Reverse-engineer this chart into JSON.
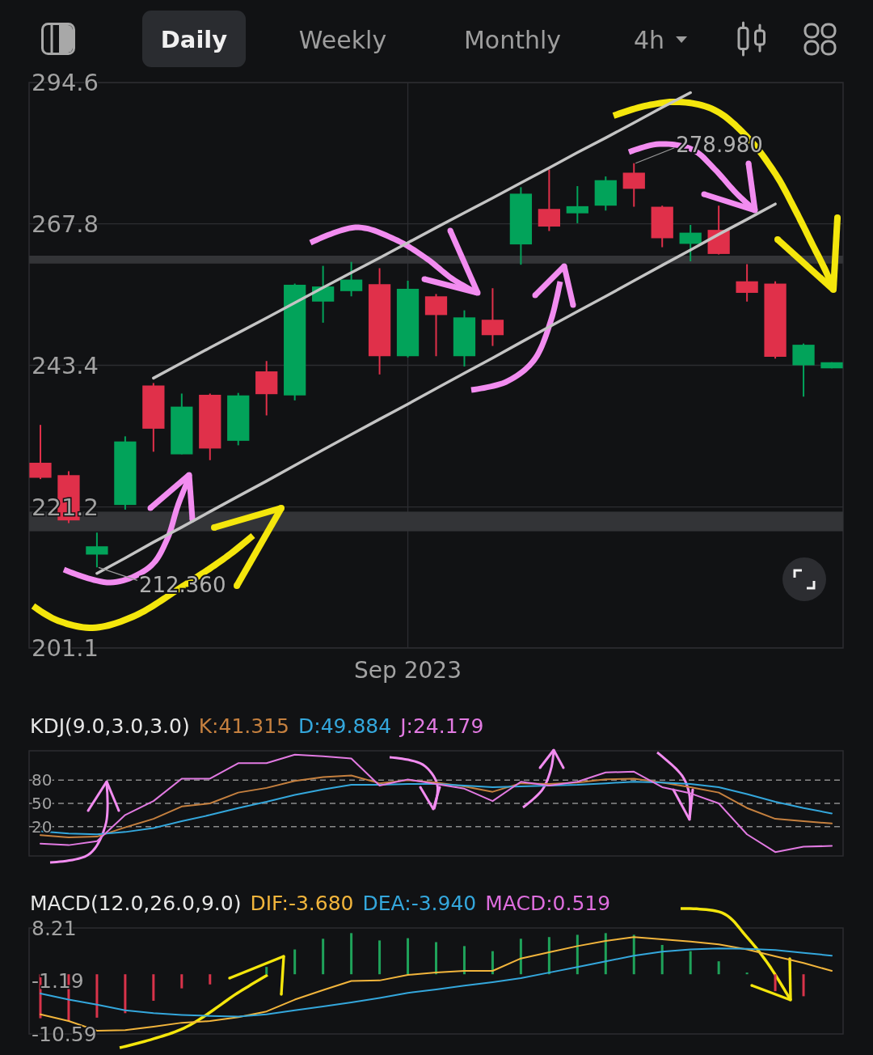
{
  "chart_data": [
    {
      "type": "other",
      "annotations": [
        "Daily",
        "Weekly",
        "Monthly",
        "4h"
      ]
    },
    {
      "type": "candlestick",
      "categories": [
        null,
        null,
        null,
        null,
        null,
        null,
        null,
        null,
        null,
        null,
        null,
        null,
        null,
        "Sep 2023",
        null,
        null,
        null,
        null,
        null,
        null,
        null,
        null,
        null,
        null,
        null,
        null,
        null,
        null,
        null
      ],
      "ohlc": [
        [
          227.9,
          233.8,
          225.4,
          225.6
        ],
        [
          226.0,
          226.6,
          218.8,
          219.2
        ],
        [
          214.2,
          217.4,
          212.36,
          215.4
        ],
        [
          221.5,
          232.0,
          220.8,
          231.2
        ],
        [
          240.1,
          240.5,
          229.6,
          233.2
        ],
        [
          229.2,
          238.8,
          229.2,
          236.7
        ],
        [
          238.6,
          238.8,
          228.3,
          230.1
        ],
        [
          231.3,
          238.9,
          230.6,
          238.5
        ],
        [
          242.4,
          244.1,
          235.3,
          238.7
        ],
        [
          238.5,
          257.2,
          237.7,
          257.0
        ],
        [
          254.1,
          260.3,
          250.5,
          256.7
        ],
        [
          255.9,
          261.0,
          255.0,
          257.9
        ],
        [
          257.1,
          259.9,
          241.9,
          244.9
        ],
        [
          244.9,
          257.7,
          244.7,
          256.3
        ],
        [
          255.0,
          255.4,
          244.9,
          251.8
        ],
        [
          244.9,
          252.6,
          243.2,
          251.4
        ],
        [
          251.0,
          256.4,
          246.6,
          248.4
        ],
        [
          264.1,
          274.5,
          260.5,
          273.3
        ],
        [
          270.5,
          277.8,
          266.5,
          267.3
        ],
        [
          269.7,
          274.7,
          267.9,
          271.0
        ],
        [
          271.1,
          276.5,
          270.2,
          275.8
        ],
        [
          277.2,
          278.98,
          270.9,
          274.2
        ],
        [
          270.9,
          271.1,
          263.6,
          265.2
        ],
        [
          264.2,
          267.6,
          261.1,
          266.2
        ],
        [
          266.7,
          271.1,
          262.3,
          262.4
        ],
        [
          257.6,
          260.6,
          254.1,
          255.6
        ],
        [
          257.2,
          257.6,
          244.5,
          244.8
        ],
        [
          243.4,
          247.0,
          238.3,
          246.8
        ],
        [
          242.9,
          243.9,
          242.9,
          243.9
        ]
      ],
      "colors": [
        "#e0304a",
        "#e0304a",
        "#02a35a",
        "#02a35a",
        "#e0304a",
        "#02a35a",
        "#e0304a",
        "#02a35a",
        "#e0304a",
        "#02a35a",
        "#02a35a",
        "#02a35a",
        "#e0304a",
        "#02a35a",
        "#e0304a",
        "#02a35a",
        "#e0304a",
        "#02a35a",
        "#e0304a",
        "#02a35a",
        "#02a35a",
        "#e0304a",
        "#e0304a",
        "#02a35a",
        "#e0304a",
        "#e0304a",
        "#e0304a",
        "#02a35a",
        "#02a35a"
      ],
      "series": [
        {
          "type": "line",
          "color": "#c4c4c4",
          "values": [
            null,
            null,
            null,
            null,
            241.3,
            243.8,
            246.3,
            248.8,
            251.3,
            253.9,
            256.5,
            259.1,
            261.7,
            264.4,
            267.1,
            269.8,
            272.5,
            275.3,
            278.1,
            281.0,
            283.8,
            286.7,
            289.7,
            292.6,
            null,
            null,
            null,
            null,
            null
          ]
        },
        {
          "type": "line",
          "color": "#c4c4c4",
          "values": [
            null,
            null,
            211.5,
            213.7,
            216.0,
            218.2,
            220.5,
            222.8,
            225.1,
            227.5,
            229.9,
            232.3,
            234.7,
            237.1,
            239.6,
            242.1,
            244.6,
            247.2,
            249.8,
            252.4,
            255.0,
            257.7,
            260.4,
            263.1,
            265.9,
            268.6,
            271.4,
            null,
            null
          ]
        }
      ],
      "ylim": [
        201.1,
        294.6
      ],
      "yticks": [
        201.1,
        221.2,
        243.4,
        267.8,
        294.6
      ],
      "log": true,
      "grid": true,
      "bands": [
        {
          "axis": "y",
          "from": 217.6,
          "to": 220.5,
          "color": "#333437"
        },
        {
          "axis": "y",
          "from": 260.7,
          "to": 262.1,
          "color": "#333437"
        }
      ],
      "annotations": [
        "278.980",
        "212.360"
      ]
    },
    {
      "type": "line",
      "title": "KDJ(9.0,3.0,3.0)",
      "categories": [
        null,
        null,
        null,
        null,
        null,
        null,
        null,
        null,
        null,
        null,
        null,
        null,
        null,
        null,
        null,
        null,
        null,
        null,
        null,
        null,
        null,
        null,
        null,
        null,
        null,
        null,
        null,
        null,
        null
      ],
      "series": [
        {
          "name": "K:41.315",
          "color": "#c5803f",
          "values": [
            9,
            6,
            7,
            19,
            30,
            46,
            50,
            64,
            70,
            79,
            84,
            86,
            76,
            80,
            77,
            72,
            65,
            76,
            75,
            77,
            81,
            82,
            77,
            71,
            64,
            44,
            30,
            27,
            24
          ]
        },
        {
          "name": "D:49.884",
          "color": "#34a7dc",
          "values": [
            14,
            11,
            10,
            13,
            18,
            27,
            35,
            44,
            52,
            61,
            68,
            74,
            74,
            75,
            75,
            73,
            71,
            72,
            73,
            74,
            76,
            78,
            77,
            75,
            71,
            62,
            52,
            44,
            37
          ]
        },
        {
          "name": "J:24.179",
          "color": "#e27ae2",
          "values": [
            -2,
            -4,
            1,
            35,
            53,
            82,
            82,
            102,
            102,
            113,
            111,
            108,
            73,
            81,
            75,
            69,
            53,
            78,
            73,
            78,
            90,
            91,
            71,
            63,
            50,
            10,
            -13,
            -6,
            -5
          ]
        }
      ],
      "ylim": [
        -18,
        118
      ],
      "yticks": [
        20,
        50,
        80
      ],
      "grid": "y",
      "legend": "top left",
      "tick_labels": "y"
    },
    {
      "type": "bar",
      "title": "MACD(12.0,26.0,9.0)",
      "categories": [
        null,
        null,
        null,
        null,
        null,
        null,
        null,
        null,
        null,
        null,
        null,
        null,
        null,
        null,
        null,
        null,
        null,
        null,
        null,
        null,
        null,
        null,
        null,
        null,
        null,
        null,
        null,
        null,
        null
      ],
      "series": [
        {
          "name": "DIF:-3.680",
          "type": "line",
          "color": "#f2b53c",
          "values": [
            -7.1,
            -8.3,
            -10.0,
            -9.9,
            -9.3,
            -8.6,
            -8.3,
            -7.6,
            -6.6,
            -4.5,
            -2.8,
            -1.2,
            -1.1,
            -0.1,
            0.3,
            0.6,
            0.6,
            2.8,
            3.9,
            5.0,
            5.9,
            6.6,
            6.2,
            5.8,
            5.3,
            4.4,
            3.2,
            2.0,
            0.6
          ]
        },
        {
          "name": "DEA:-3.940",
          "type": "line",
          "color": "#34a7dc",
          "values": [
            -3.4,
            -4.5,
            -5.4,
            -6.4,
            -6.9,
            -7.2,
            -7.4,
            -7.5,
            -7.1,
            -6.4,
            -5.7,
            -5.0,
            -4.2,
            -3.3,
            -2.7,
            -2.0,
            -1.4,
            -0.7,
            0.3,
            1.3,
            2.3,
            3.3,
            4.0,
            4.4,
            4.6,
            4.5,
            4.3,
            3.8,
            3.3
          ]
        },
        {
          "name": "MACD:0.519",
          "color": "#de6ede",
          "colors": [
            "#d8334a",
            "#d8334a",
            "#d8334a",
            "#d8334a",
            "#d8334a",
            "#d8334a",
            "#d8334a",
            null,
            "#1fa25a",
            "#1fa25a",
            "#1fa25a",
            "#1fa25a",
            "#1fa25a",
            "#1fa25a",
            "#1fa25a",
            "#1fa25a",
            "#1fa25a",
            "#1fa25a",
            "#1fa25a",
            "#1fa25a",
            "#1fa25a",
            "#1fa25a",
            "#1fa25a",
            "#1fa25a",
            "#1fa25a",
            "#1fa25a",
            "#d8334a",
            "#d8334a",
            null
          ],
          "values": [
            -7.8,
            -8.3,
            -7.7,
            -6.9,
            -4.7,
            -2.5,
            -1.8,
            null,
            1.3,
            4.4,
            6.3,
            7.3,
            6.0,
            6.4,
            5.7,
            5.0,
            4.1,
            6.3,
            6.6,
            7.0,
            7.3,
            7.0,
            5.2,
            4.1,
            2.3,
            0.3,
            -3.0,
            -3.9,
            null
          ]
        }
      ],
      "ylim": [
        -10.59,
        8.21
      ],
      "yticks": [
        -10.59,
        -1.19,
        8.21
      ],
      "legend": "top left",
      "tick_labels": "y"
    }
  ]
}
